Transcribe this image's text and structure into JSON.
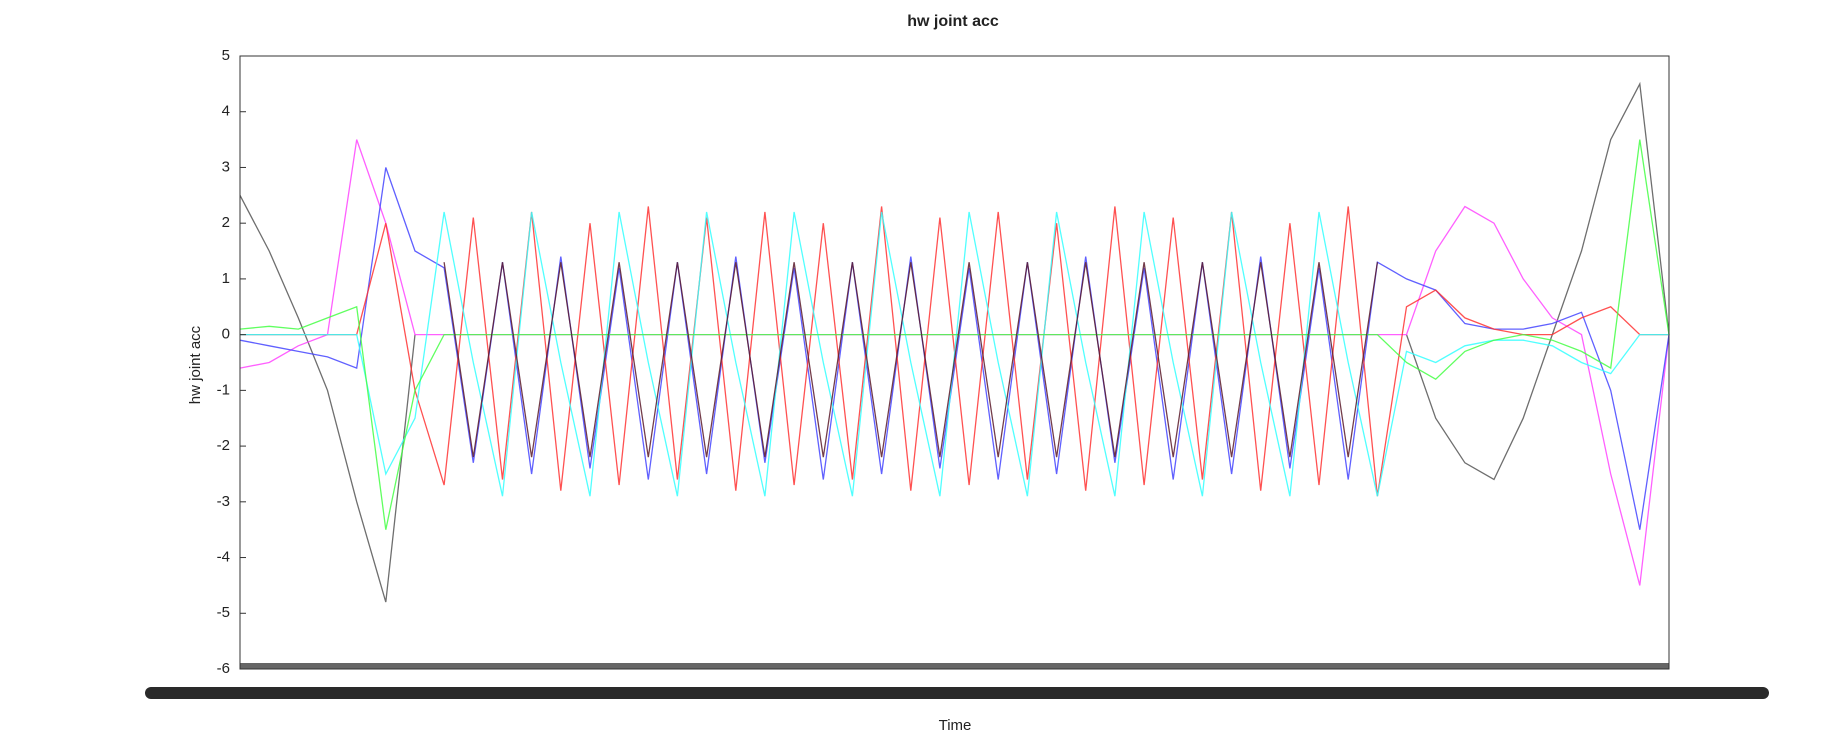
{
  "chart_data": {
    "type": "line",
    "title": "hw joint acc",
    "xlabel": "Time",
    "ylabel": "hw joint acc",
    "ylim": [
      -6,
      5
    ],
    "yticks": [
      -6,
      -5,
      -4,
      -3,
      -2,
      -1,
      0,
      1,
      2,
      3,
      4,
      5
    ],
    "series": [
      {
        "color": "#555555",
        "values": [
          2.5,
          1.5,
          0.3,
          -1,
          -3,
          -4.8,
          0,
          null,
          null,
          null,
          null,
          null,
          null,
          null,
          null,
          null,
          null,
          null,
          null,
          null,
          null,
          null,
          null,
          null,
          null,
          null,
          null,
          null,
          null,
          null,
          null,
          null,
          null,
          null,
          null,
          null,
          null,
          null,
          null,
          null,
          0,
          -1.5,
          -2.3,
          -2.6,
          -1.5,
          0,
          1.5,
          3.5,
          4.5,
          0
        ]
      },
      {
        "color": "#ff44ff",
        "values": [
          -0.6,
          -0.5,
          -0.2,
          0,
          3.5,
          2,
          0,
          0,
          0,
          0,
          0,
          0,
          0,
          0,
          0,
          0,
          0,
          0,
          0,
          0,
          0,
          0,
          0,
          0,
          0,
          0,
          0,
          0,
          0,
          0,
          0,
          0,
          0,
          0,
          0,
          0,
          0,
          0,
          0,
          0,
          0,
          1.5,
          2.3,
          2,
          1,
          0.3,
          0,
          -2.5,
          -4.5,
          0
        ]
      },
      {
        "color": "#4444ff",
        "values": [
          -0.1,
          -0.2,
          -0.3,
          -0.4,
          -0.6,
          3,
          1.5,
          1.2,
          -2.3,
          1.3,
          -2.5,
          1.4,
          -2.4,
          1.2,
          -2.6,
          1.3,
          -2.5,
          1.4,
          -2.3,
          1.2,
          -2.6,
          1.3,
          -2.5,
          1.4,
          -2.4,
          1.2,
          -2.6,
          1.3,
          -2.5,
          1.4,
          -2.3,
          1.2,
          -2.6,
          1.3,
          -2.5,
          1.4,
          -2.4,
          1.2,
          -2.6,
          1.3,
          1,
          0.8,
          0.2,
          0.1,
          0.1,
          0.2,
          0.4,
          -1,
          -3.5,
          0
        ]
      },
      {
        "color": "#ff3333",
        "values": [
          0,
          0,
          0,
          0,
          0,
          2,
          -1,
          -2.7,
          2.1,
          -2.6,
          2.2,
          -2.8,
          2.0,
          -2.7,
          2.3,
          -2.6,
          2.1,
          -2.8,
          2.2,
          -2.7,
          2.0,
          -2.6,
          2.3,
          -2.8,
          2.1,
          -2.7,
          2.2,
          -2.6,
          2.0,
          -2.8,
          2.3,
          -2.7,
          2.1,
          -2.6,
          2.2,
          -2.8,
          2.0,
          -2.7,
          2.3,
          -2.9,
          0.5,
          0.8,
          0.3,
          0.1,
          0,
          0,
          0.3,
          0.5,
          0,
          0
        ]
      },
      {
        "color": "#33ffff",
        "values": [
          0,
          0,
          0,
          0,
          0,
          -2.5,
          -1.5,
          2.2,
          -0.5,
          -2.9,
          2.2,
          -0.5,
          -2.9,
          2.2,
          -0.5,
          -2.9,
          2.2,
          -0.5,
          -2.9,
          2.2,
          -0.5,
          -2.9,
          2.2,
          -0.5,
          -2.9,
          2.2,
          -0.5,
          -2.9,
          2.2,
          -0.5,
          -2.9,
          2.2,
          -0.5,
          -2.9,
          2.2,
          -0.5,
          -2.9,
          2.2,
          -0.5,
          -2.9,
          -0.3,
          -0.5,
          -0.2,
          -0.1,
          -0.1,
          -0.2,
          -0.5,
          -0.7,
          0,
          0
        ]
      },
      {
        "color": "#44ff44",
        "values": [
          0.1,
          0.15,
          0.1,
          0.3,
          0.5,
          -3.5,
          -1,
          0,
          0,
          0,
          0,
          0,
          0,
          0,
          0,
          0,
          0,
          0,
          0,
          0,
          0,
          0,
          0,
          0,
          0,
          0,
          0,
          0,
          0,
          0,
          0,
          0,
          0,
          0,
          0,
          0,
          0,
          0,
          0,
          0,
          -0.5,
          -0.8,
          -0.3,
          -0.1,
          0,
          -0.1,
          -0.3,
          -0.6,
          3.5,
          0
        ]
      },
      {
        "color": "#5a1a2a",
        "values": [
          null,
          null,
          null,
          null,
          null,
          null,
          null,
          1.3,
          -2.2,
          1.3,
          -2.2,
          1.3,
          -2.2,
          1.3,
          -2.2,
          1.3,
          -2.2,
          1.3,
          -2.2,
          1.3,
          -2.2,
          1.3,
          -2.2,
          1.3,
          -2.2,
          1.3,
          -2.2,
          1.3,
          -2.2,
          1.3,
          -2.2,
          1.3,
          -2.2,
          1.3,
          -2.2,
          1.3,
          -2.2,
          1.3,
          -2.2,
          1.3,
          null,
          null,
          null,
          null,
          null,
          null,
          null,
          null,
          null,
          null
        ]
      }
    ]
  }
}
